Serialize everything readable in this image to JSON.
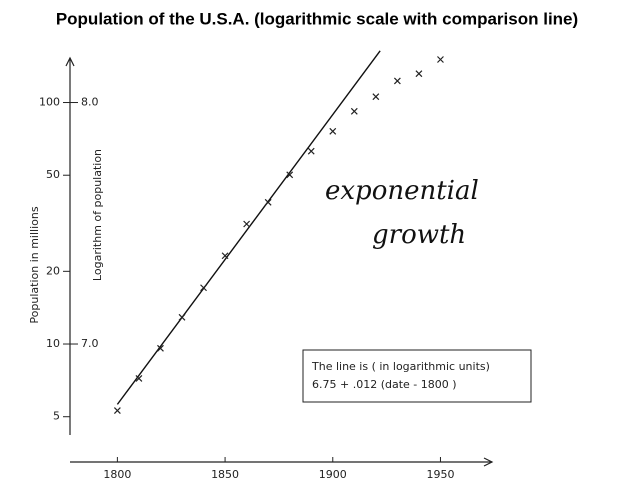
{
  "chart_data": {
    "type": "scatter",
    "title": "Population of the U.S.A. (logarithmic scale with comparison line)",
    "y_label": "Population in millions",
    "y2_label": "Logarithm of population",
    "x": [
      1800,
      1810,
      1820,
      1830,
      1840,
      1850,
      1860,
      1870,
      1880,
      1890,
      1900,
      1910,
      1920,
      1930,
      1940,
      1950
    ],
    "values": [
      5.3,
      7.2,
      9.6,
      12.9,
      17.1,
      23.2,
      31.4,
      38.6,
      50.2,
      62.9,
      76.0,
      92.0,
      105.7,
      122.8,
      131.7,
      150.7
    ],
    "color": "#222222",
    "comparison_line": {
      "x": [
        1800,
        1922
      ],
      "values": [
        6.75,
        8.214
      ],
      "axis": "y2"
    },
    "xlim": [
      1778,
      1973
    ],
    "xticks": [
      1800,
      1850,
      1900,
      1950
    ],
    "ylim": [
      4.2,
      150
    ],
    "yticks": [
      5,
      10,
      20,
      50,
      100
    ],
    "log_y": true,
    "y2lim": [
      6.62325,
      8.17609
    ],
    "y2ticks": [
      {
        "value": 7,
        "label": "7.0"
      },
      {
        "value": 8,
        "label": "8.0"
      }
    ],
    "annotations": [
      "exponential",
      "growth"
    ],
    "box_lines": [
      "The line is ( in logarithmic units)",
      "6.75 + .012 (date - 1800 )"
    ]
  }
}
